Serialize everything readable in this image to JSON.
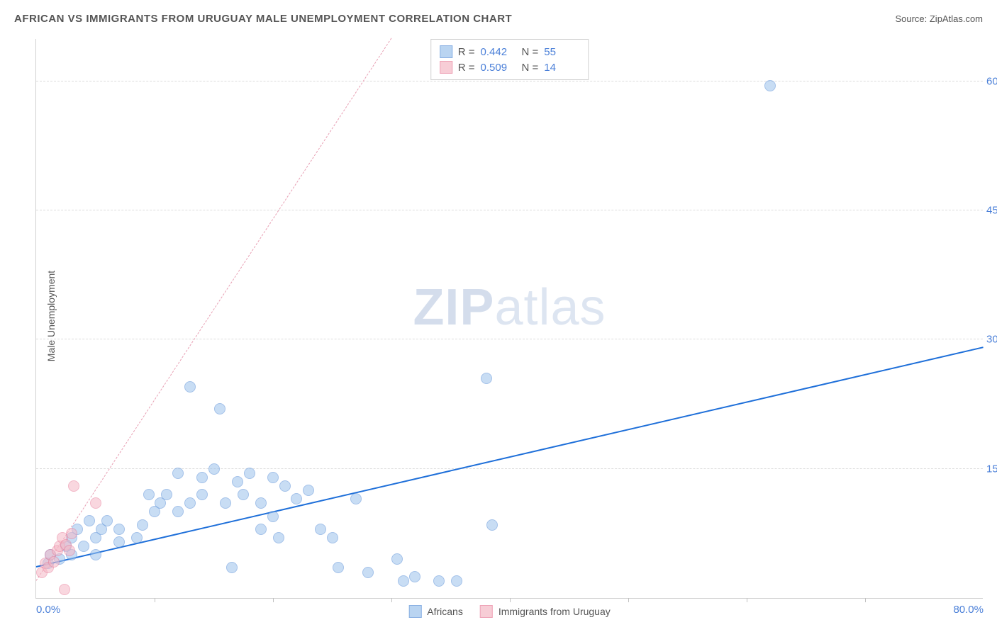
{
  "title": "AFRICAN VS IMMIGRANTS FROM URUGUAY MALE UNEMPLOYMENT CORRELATION CHART",
  "source": "Source: ZipAtlas.com",
  "ylabel": "Male Unemployment",
  "watermark_zip": "ZIP",
  "watermark_atlas": "atlas",
  "chart": {
    "type": "scatter",
    "xlim": [
      0,
      80
    ],
    "ylim": [
      0,
      65
    ],
    "background_color": "#ffffff",
    "grid_color": "#dcdcdc",
    "yticks": [
      {
        "value": 15,
        "label": "15.0%"
      },
      {
        "value": 30,
        "label": "30.0%"
      },
      {
        "value": 45,
        "label": "45.0%"
      },
      {
        "value": 60,
        "label": "60.0%"
      }
    ],
    "xticks": [
      {
        "value": 0,
        "label": "0.0%",
        "align": "left"
      },
      {
        "value": 80,
        "label": "80.0%",
        "align": "right"
      }
    ],
    "xtick_marks": [
      10,
      20,
      30,
      40,
      50,
      60,
      70
    ],
    "series": [
      {
        "name": "Africans",
        "fill_color": "#9cc2ec",
        "stroke_color": "#5a90d8",
        "fill_opacity": 0.55,
        "marker_size": 16,
        "trend": {
          "x1": 0,
          "y1": 3.5,
          "x2": 80,
          "y2": 29,
          "stroke": "#1e6fd9",
          "width": 2.5,
          "dash": "solid"
        },
        "legend_stats": {
          "R": "0.442",
          "N": "55"
        },
        "points": [
          [
            1,
            4
          ],
          [
            1.2,
            5
          ],
          [
            2,
            4.5
          ],
          [
            2.5,
            6
          ],
          [
            3,
            5
          ],
          [
            3,
            7
          ],
          [
            3.5,
            8
          ],
          [
            4,
            6
          ],
          [
            4.5,
            9
          ],
          [
            5,
            7
          ],
          [
            5,
            5
          ],
          [
            5.5,
            8
          ],
          [
            6,
            9
          ],
          [
            7,
            8
          ],
          [
            7,
            6.5
          ],
          [
            8.5,
            7
          ],
          [
            9,
            8.5
          ],
          [
            9.5,
            12
          ],
          [
            10,
            10
          ],
          [
            10.5,
            11
          ],
          [
            11,
            12
          ],
          [
            12,
            10
          ],
          [
            12,
            14.5
          ],
          [
            13,
            11
          ],
          [
            13,
            24.5
          ],
          [
            14,
            12
          ],
          [
            14,
            14
          ],
          [
            15,
            15
          ],
          [
            15.5,
            22
          ],
          [
            16,
            11
          ],
          [
            16.5,
            3.5
          ],
          [
            17,
            13.5
          ],
          [
            17.5,
            12
          ],
          [
            18,
            14.5
          ],
          [
            19,
            11
          ],
          [
            19,
            8
          ],
          [
            20,
            14
          ],
          [
            20,
            9.5
          ],
          [
            20.5,
            7
          ],
          [
            21,
            13
          ],
          [
            22,
            11.5
          ],
          [
            23,
            12.5
          ],
          [
            24,
            8
          ],
          [
            25,
            7
          ],
          [
            25.5,
            3.5
          ],
          [
            27,
            11.5
          ],
          [
            28,
            3
          ],
          [
            30.5,
            4.5
          ],
          [
            31,
            2
          ],
          [
            32,
            2.5
          ],
          [
            34,
            2
          ],
          [
            35.5,
            2
          ],
          [
            38,
            25.5
          ],
          [
            38.5,
            8.5
          ],
          [
            62,
            59.5
          ]
        ]
      },
      {
        "name": "Immigrants from Uruguay",
        "fill_color": "#f5b8c6",
        "stroke_color": "#e87d9a",
        "fill_opacity": 0.55,
        "marker_size": 16,
        "trend": {
          "x1": 0,
          "y1": 2,
          "x2": 30,
          "y2": 65,
          "stroke": "#e8a0b4",
          "width": 1.5,
          "dash": "5,5"
        },
        "legend_stats": {
          "R": "0.509",
          "N": "14"
        },
        "points": [
          [
            0.5,
            3
          ],
          [
            0.8,
            4
          ],
          [
            1,
            3.5
          ],
          [
            1.2,
            5
          ],
          [
            1.5,
            4.2
          ],
          [
            1.8,
            5.5
          ],
          [
            2,
            6
          ],
          [
            2.2,
            7
          ],
          [
            2.4,
            1
          ],
          [
            2.5,
            6.2
          ],
          [
            2.8,
            5.5
          ],
          [
            3,
            7.5
          ],
          [
            3.2,
            13
          ],
          [
            5,
            11
          ]
        ]
      }
    ],
    "legend_bottom": [
      {
        "label": "Africans",
        "fill": "#9cc2ec",
        "stroke": "#5a90d8"
      },
      {
        "label": "Immigrants from Uruguay",
        "fill": "#f5b8c6",
        "stroke": "#e87d9a"
      }
    ]
  }
}
